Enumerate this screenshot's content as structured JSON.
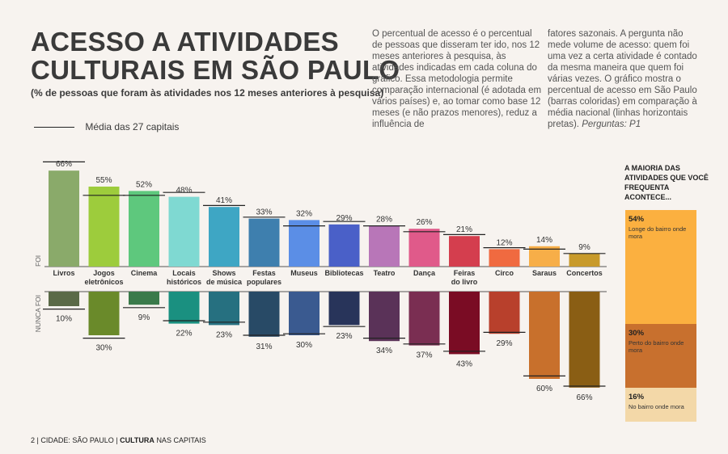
{
  "header": {
    "title_line1": "ACESSO A ATIVIDADES",
    "title_line2": "CULTURAIS EM SÃO PAULO",
    "subtitle": "(% de pessoas que foram às atividades nos 12 meses anteriores à pesquisa)"
  },
  "legend": {
    "label": "Média das 27 capitais"
  },
  "description": {
    "col1": "O percentual de acesso é o percentual de pessoas que disseram ter ido, nos 12 meses anteriores à pesquisa, às atividades indicadas em cada coluna do gráfico. Essa metodologia permite comparação internacional (é adotada em vários países) e, ao tomar como base 12 meses (e não prazos menores), reduz a influência de",
    "col2": "fatores sazonais. A pergunta não mede volume de acesso: quem foi uma vez a certa atividade é contado da mesma maneira que quem foi várias vezes. O gráfico mostra o percentual de acesso em São Paulo (barras coloridas) em comparação à média nacional (linhas horizontais pretas).",
    "col2_ref": "Perguntas: P1"
  },
  "chart_data": [
    {
      "type": "bar",
      "title": "",
      "axis_label_top": "FOI",
      "axis_label_bottom": "NUNCA FOI",
      "categories": [
        "Livros",
        "Jogos eletrônicos",
        "Cinema",
        "Locais históricos",
        "Shows de música",
        "Festas populares",
        "Museus",
        "Bibliotecas",
        "Teatro",
        "Dança",
        "Feiras do livro",
        "Circo",
        "Saraus",
        "Concertos"
      ],
      "series": [
        {
          "name": "FOI",
          "values": [
            66,
            55,
            52,
            48,
            41,
            33,
            32,
            29,
            28,
            26,
            21,
            12,
            14,
            9
          ],
          "labels": [
            "66%",
            "55%",
            "52%",
            "48%",
            "41%",
            "33%",
            "32%",
            "29%",
            "28%",
            "26%",
            "21%",
            "12%",
            "14%",
            "9%"
          ]
        },
        {
          "name": "NUNCA FOI",
          "values": [
            10,
            30,
            9,
            22,
            23,
            31,
            30,
            23,
            34,
            37,
            43,
            29,
            60,
            66
          ],
          "labels": [
            "10%",
            "30%",
            "9%",
            "22%",
            "23%",
            "31%",
            "30%",
            "23%",
            "34%",
            "37%",
            "43%",
            "29%",
            "60%",
            "66%"
          ]
        },
        {
          "name": "Média das 27 capitais (foi)",
          "values": [
            72,
            49,
            49,
            51,
            42,
            34,
            28,
            31,
            28,
            24,
            22,
            13,
            12,
            9
          ]
        },
        {
          "name": "Média das 27 capitais (nunca foi)",
          "values": [
            12,
            32,
            11,
            20,
            21,
            30,
            29,
            24,
            32,
            36,
            41,
            28,
            58,
            65
          ]
        }
      ],
      "colors_top": [
        "#8aaa6a",
        "#9dcc3c",
        "#5ec87d",
        "#7fd9d2",
        "#3ea6c4",
        "#3e7fae",
        "#5b8ee6",
        "#4a60c8",
        "#b876b8",
        "#e05a8a",
        "#d43e4e",
        "#f06a40",
        "#f7ae48",
        "#c89a2a"
      ],
      "colors_bottom": [
        "#5a6a48",
        "#6a8a2a",
        "#3a7a4a",
        "#1a9080",
        "#267080",
        "#284a66",
        "#3a5a90",
        "#28345a",
        "#5a3258",
        "#7a2e52",
        "#7a0c24",
        "#b8402c",
        "#c8702c",
        "#8a5e14"
      ],
      "ylim": [
        0,
        70
      ]
    },
    {
      "type": "bar",
      "title": "A MAIORIA DAS ATIVIDADES QUE VOCÊ FREQUENTA ACONTECE...",
      "categories": [
        "Longe do bairro onde mora",
        "Perto do bairro onde mora",
        "No bairro onde mora"
      ],
      "values": [
        54,
        30,
        16
      ],
      "labels": [
        "54%",
        "30%",
        "16%"
      ],
      "colors": [
        "#fbb040",
        "#c8702e",
        "#f3d8a8"
      ],
      "stacked": true
    }
  ],
  "footer": {
    "page": "2",
    "city": "CIDADE: SÃO PAULO",
    "section_bold": "CULTURA",
    "section_rest": "NAS CAPITAIS"
  }
}
